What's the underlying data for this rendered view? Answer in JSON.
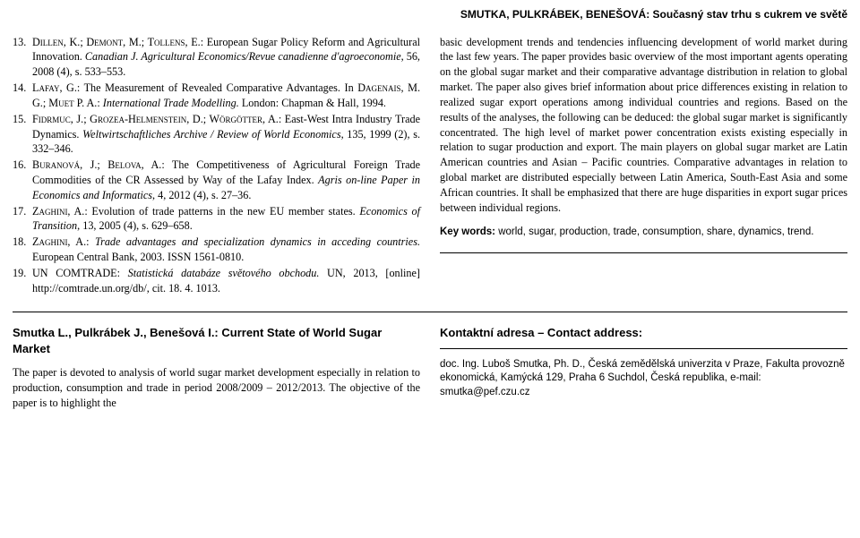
{
  "header": "SMUTKA, PULKRÁBEK, BENEŠOVÁ: Současný stav trhu s cukrem ve světě",
  "refs": [
    {
      "n": "13.",
      "body": "<span class='smallcaps'>Dillen, K.; Demont, M.; Tollens, E.</span>: European Sugar Policy Reform and Agricultural Innovation. <i>Canadian J. Agricultural Economics/Revue canadienne d'agroeconomie</i>, 56, 2008 (4), s. 533–553."
    },
    {
      "n": "14.",
      "body": "<span class='smallcaps'>Lafay, G.</span>: The Measurement of Revealed Comparative Advantages. In <span class='smallcaps'>Dagenais, M. G.; Muet P. A.</span>: <i>International Trade Modelling.</i> London: Chapman &amp; Hall, 1994."
    },
    {
      "n": "15.",
      "body": "<span class='smallcaps'>Fidrmuc, J.; Grozea-Helmenstein, D.; Wörgötter, A.</span>: East-West Intra Industry Trade Dynamics. <i>Weltwirtschaftliches Archive / Review of World Economics</i>, 135, 1999 (2), s. 332–346."
    },
    {
      "n": "16.",
      "body": "<span class='smallcaps'>Buranová, J.; Belova, A.</span>: The Competitiveness of Agricultural Foreign Trade Commodities of the CR Assessed by Way of the Lafay Index. <i>Agris on-line Paper in Economics and Informatics</i>, 4, 2012 (4), s. 27–36."
    },
    {
      "n": "17.",
      "body": "<span class='smallcaps'>Zaghini, A.</span>: Evolution of trade patterns in the new EU member states. <i>Economics of Transition</i>, 13, 2005 (4), s. 629–658."
    },
    {
      "n": "18.",
      "body": "<span class='smallcaps'>Zaghini, A.</span>: <i>Trade advantages and specialization dynamics in acceding countries.</i> European Central Bank, 2003. ISSN 1561-0810."
    },
    {
      "n": "19.",
      "body": "UN COMTRADE: <i>Statistická databáze světového obchodu.</i> UN, 2013, [online] http://comtrade.un.org/db/, cit. 18. 4. 1013."
    }
  ],
  "right_para": "basic development trends and tendencies influencing development of world market during the last few years. The paper provides basic overview of the most important agents operating on the global sugar market and their comparative advantage distribution in relation to global market. The paper also gives brief information about price differences existing in relation to realized sugar export operations among individual countries and regions. Based on the results of the analyses, the following can be deduced: the global sugar market is significantly concentrated. The high level of market power concentration exists existing especially in relation to sugar production and export. The main players on global sugar market are Latin American countries and Asian – Pacific countries. Comparative advantages in relation to global market are distributed especially between Latin America, South-East Asia and some African countries. It shall be emphasized that there are huge disparities in export sugar prices between individual regions.",
  "keywords_label": "Key words:",
  "keywords": " world, sugar, production, trade, consumption, share, dynamics, trend.",
  "bottom_left_title": "Smutka L., Pulkrábek J., Benešová I.: Current State of World Sugar Market",
  "bottom_left_text": "The paper is devoted to analysis of world sugar market development especially in relation to production, consumption and trade in period 2008/2009 – 2012/2013. The objective of the paper is to highlight the",
  "contact_head": "Kontaktní adresa – Contact address:",
  "contact_body": "doc. Ing. Luboš Smutka, Ph. D., Česká zemědělská univerzita v Praze, Fakulta provozně ekonomická, Kamýcká 129, Praha 6 Suchdol, Česká republika, e-mail: smutka@pef.czu.cz"
}
